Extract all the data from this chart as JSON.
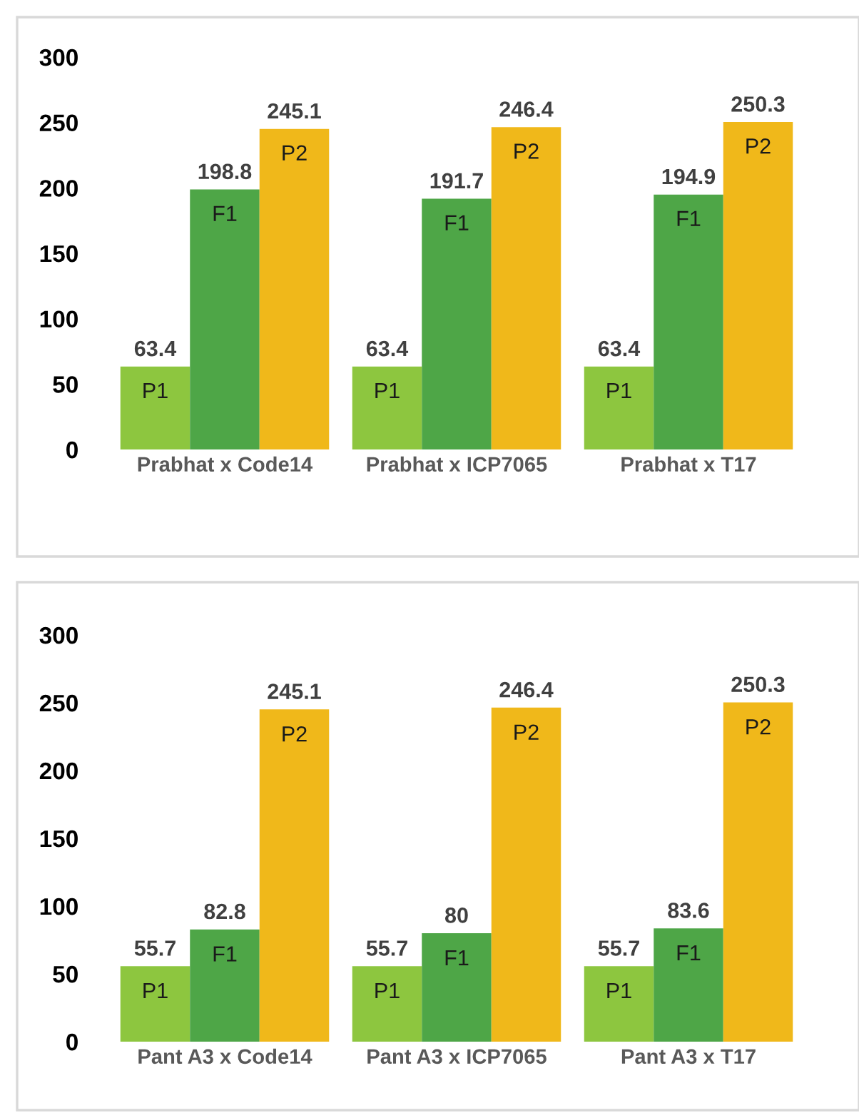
{
  "chart_data": [
    {
      "type": "bar",
      "categories": [
        "Prabhat x Code14",
        "Prabhat x ICP7065",
        "Prabhat x T17"
      ],
      "ylim": [
        0,
        300
      ],
      "yticks": [
        0,
        50,
        100,
        150,
        200,
        250,
        300
      ],
      "grid": false,
      "data_labels": true,
      "legend": false,
      "series": [
        {
          "name": "P1",
          "color": "#8dc63f",
          "values": [
            63.4,
            63.4,
            63.4
          ]
        },
        {
          "name": "F1",
          "color": "#4ea647",
          "values": [
            198.8,
            191.7,
            194.9
          ]
        },
        {
          "name": "P2",
          "color": "#f0b81a",
          "values": [
            245.1,
            246.4,
            250.3
          ]
        }
      ]
    },
    {
      "type": "bar",
      "categories": [
        "Pant A3 x Code14",
        "Pant A3 x ICP7065",
        "Pant A3 x T17"
      ],
      "ylim": [
        0,
        300
      ],
      "yticks": [
        0,
        50,
        100,
        150,
        200,
        250,
        300
      ],
      "grid": false,
      "data_labels": true,
      "legend": false,
      "series": [
        {
          "name": "P1",
          "color": "#8dc63f",
          "values": [
            55.7,
            55.7,
            55.7
          ]
        },
        {
          "name": "F1",
          "color": "#4ea647",
          "values": [
            82.8,
            80,
            83.6
          ]
        },
        {
          "name": "P2",
          "color": "#f0b81a",
          "values": [
            245.1,
            246.4,
            250.3
          ]
        }
      ]
    }
  ]
}
